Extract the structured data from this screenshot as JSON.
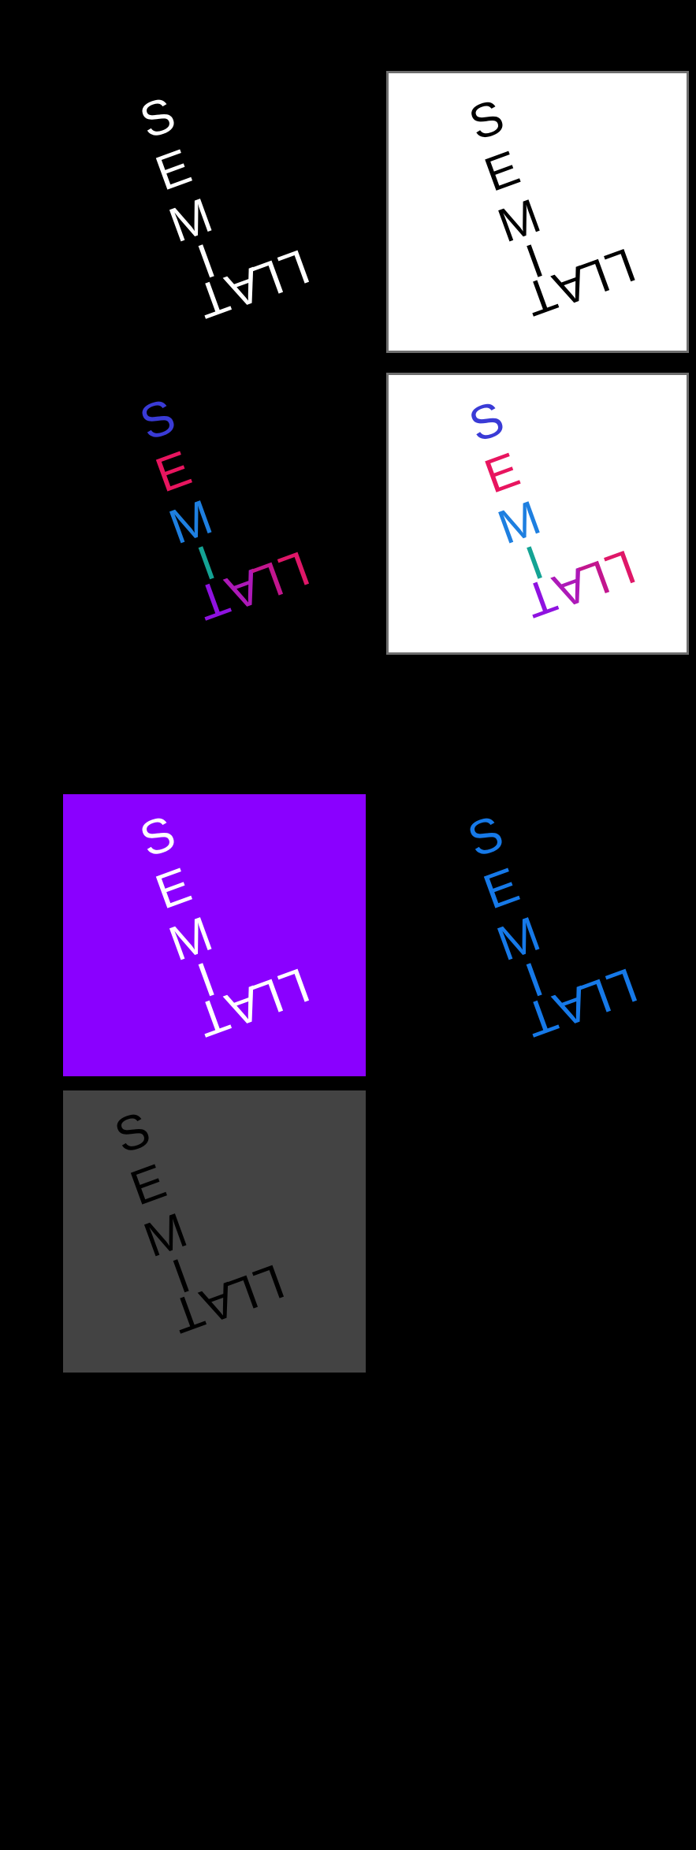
{
  "logo": {
    "letters": [
      "S",
      "E",
      "M",
      "I",
      "T",
      "A",
      "L",
      "L"
    ],
    "aria_label": "SEMITALL"
  },
  "variants": [
    {
      "id": "white-on-black",
      "background": "#000000",
      "framed": false,
      "colors": [
        "#ffffff",
        "#ffffff",
        "#ffffff",
        "#ffffff",
        "#ffffff",
        "#ffffff",
        "#ffffff",
        "#ffffff"
      ]
    },
    {
      "id": "black-on-white",
      "background": "#ffffff",
      "framed": true,
      "colors": [
        "#000000",
        "#000000",
        "#000000",
        "#000000",
        "#000000",
        "#000000",
        "#000000",
        "#000000"
      ]
    },
    {
      "id": "multicolor-on-black",
      "background": "#000000",
      "framed": false,
      "colors": [
        "#3a3bd6",
        "#e8155f",
        "#1e7fe0",
        "#14a394",
        "#8f12e0",
        "#ad19b8",
        "#c2168e",
        "#df1768"
      ]
    },
    {
      "id": "multicolor-on-white",
      "background": "#ffffff",
      "framed": true,
      "colors": [
        "#3a3bd6",
        "#e8155f",
        "#1e7fe0",
        "#14a394",
        "#8f12e0",
        "#ad19b8",
        "#c2168e",
        "#df1768"
      ]
    },
    {
      "id": "white-on-purple",
      "background": "#8a00ff",
      "framed": false,
      "colors": [
        "#ffffff",
        "#ffffff",
        "#ffffff",
        "#ffffff",
        "#ffffff",
        "#ffffff",
        "#ffffff",
        "#ffffff"
      ]
    },
    {
      "id": "blue-on-black",
      "background": "#000000",
      "framed": false,
      "colors": [
        "#1679e8",
        "#1679e8",
        "#1679e8",
        "#1679e8",
        "#1679e8",
        "#1679e8",
        "#1679e8",
        "#1679e8"
      ]
    },
    {
      "id": "black-on-gray",
      "background": "#434343",
      "framed": false,
      "colors": [
        "#000000",
        "#000000",
        "#000000",
        "#000000",
        "#000000",
        "#000000",
        "#000000",
        "#000000"
      ]
    }
  ]
}
